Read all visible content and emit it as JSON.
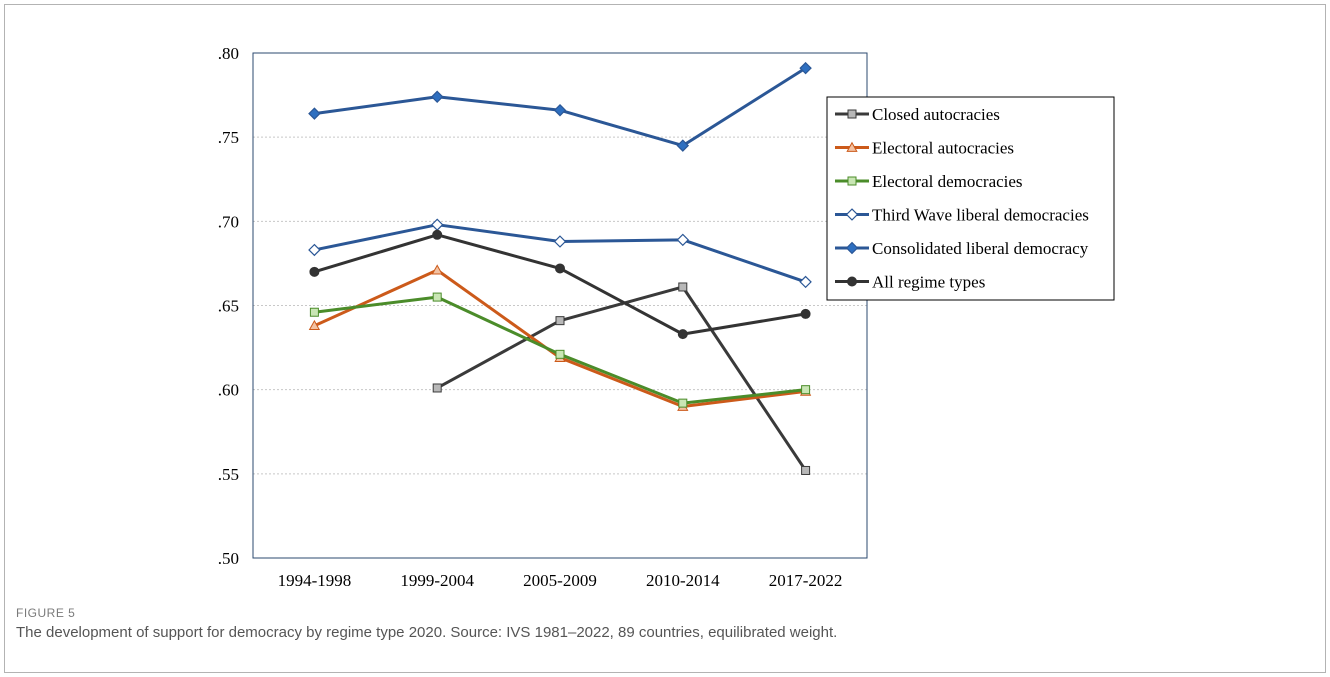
{
  "figure": {
    "label": "FIGURE 5",
    "caption": "The development of support for democracy by regime type 2020. Source: IVS 1981–2022, 89 countries, equilibrated weight."
  },
  "chart_data": {
    "type": "line",
    "categories": [
      "1994-1998",
      "1999-2004",
      "2005-2009",
      "2010-2014",
      "2017-2022"
    ],
    "ylim": [
      0.5,
      0.8
    ],
    "yticks": [
      0.5,
      0.55,
      0.6,
      0.65,
      0.7,
      0.75,
      0.8
    ],
    "ytick_labels": [
      ".50",
      ".55",
      ".60",
      ".65",
      ".70",
      ".75",
      ".80"
    ],
    "grid": true,
    "legend_position": "right",
    "series": [
      {
        "name": "Closed autocracies",
        "color": "#3a3a3a",
        "marker": "square",
        "marker_fill": "#b8b8b8",
        "values": [
          null,
          0.601,
          0.641,
          0.661,
          0.552
        ]
      },
      {
        "name": "Electoral autocracies",
        "color": "#cc5a1a",
        "marker": "triangle",
        "marker_fill": "#f3c2a2",
        "values": [
          0.638,
          0.671,
          0.619,
          0.59,
          0.599
        ]
      },
      {
        "name": "Electoral democracies",
        "color": "#4b8c2a",
        "marker": "square",
        "marker_fill": "#c9e6b4",
        "values": [
          0.646,
          0.655,
          0.621,
          0.592,
          0.6
        ]
      },
      {
        "name": "Third Wave liberal democracies",
        "color": "#2b5796",
        "marker": "diamond",
        "marker_fill": "#ffffff",
        "values": [
          0.683,
          0.698,
          0.688,
          0.689,
          0.664
        ]
      },
      {
        "name": "Consolidated liberal democracy",
        "color": "#2b5796",
        "marker": "diamond",
        "marker_fill": "#2e6fc0",
        "values": [
          0.764,
          0.774,
          0.766,
          0.745,
          0.791
        ]
      },
      {
        "name": "All regime types",
        "color": "#333333",
        "marker": "circle",
        "marker_fill": "#333333",
        "values": [
          0.67,
          0.692,
          0.672,
          0.633,
          0.645
        ]
      }
    ]
  }
}
